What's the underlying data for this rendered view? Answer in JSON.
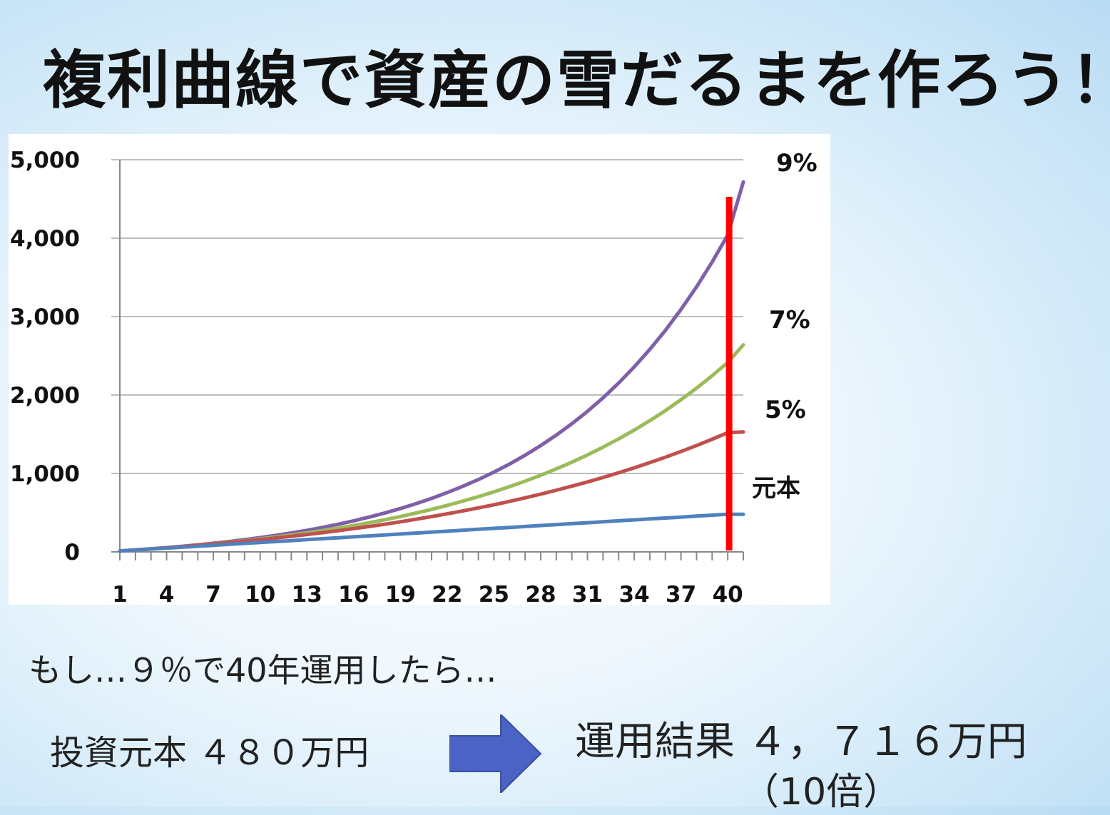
{
  "title": "複利曲線で資産の雪だるまを作ろう！",
  "chart_data": {
    "type": "line",
    "title": "",
    "xlabel": "",
    "ylabel": "",
    "ylim": [
      0,
      5000
    ],
    "y_ticks": [
      "0",
      "1,000",
      "2,000",
      "3,000",
      "4,000",
      "5,000"
    ],
    "y_tick_values": [
      0,
      1000,
      2000,
      3000,
      4000,
      5000
    ],
    "x_ticks": [
      "1",
      "4",
      "7",
      "10",
      "13",
      "16",
      "19",
      "22",
      "25",
      "28",
      "31",
      "34",
      "37",
      "40"
    ],
    "x_tick_values": [
      1,
      4,
      7,
      10,
      13,
      16,
      19,
      22,
      25,
      28,
      31,
      34,
      37,
      40
    ],
    "xlim": [
      1,
      41
    ],
    "grid": true,
    "series": [
      {
        "name": "9%",
        "color": "#7f5fa8",
        "rate": 0.09,
        "x": [
          1,
          2,
          3,
          4,
          5,
          6,
          7,
          8,
          9,
          10,
          11,
          12,
          13,
          14,
          15,
          16,
          17,
          18,
          19,
          20,
          21,
          22,
          23,
          24,
          25,
          26,
          27,
          28,
          29,
          30,
          31,
          32,
          33,
          34,
          35,
          36,
          37,
          38,
          39,
          40,
          41
        ],
        "y": [
          12,
          25,
          39,
          55,
          72,
          90,
          110,
          132,
          156,
          182,
          210,
          241,
          275,
          312,
          352,
          396,
          444,
          496,
          553,
          615,
          682,
          756,
          835,
          922,
          1017,
          1120,
          1233,
          1355,
          1489,
          1634,
          1792,
          1965,
          2153,
          2358,
          2582,
          2825,
          3091,
          3380,
          3696,
          4040,
          4716
        ]
      },
      {
        "name": "7%",
        "color": "#9bbb59",
        "rate": 0.07,
        "x": [
          1,
          2,
          3,
          4,
          5,
          6,
          7,
          8,
          9,
          10,
          11,
          12,
          13,
          14,
          15,
          16,
          17,
          18,
          19,
          20,
          21,
          22,
          23,
          24,
          25,
          26,
          27,
          28,
          29,
          30,
          31,
          32,
          33,
          34,
          35,
          36,
          37,
          38,
          39,
          40,
          41
        ],
        "y": [
          12,
          25,
          38,
          53,
          69,
          86,
          104,
          123,
          143,
          166,
          190,
          215,
          242,
          272,
          303,
          336,
          372,
          410,
          451,
          495,
          542,
          593,
          647,
          704,
          766,
          832,
          902,
          977,
          1058,
          1144,
          1236,
          1335,
          1440,
          1553,
          1673,
          1802,
          1940,
          2088,
          2246,
          2415,
          2640
        ]
      },
      {
        "name": "5%",
        "color": "#c0504d",
        "rate": 0.05,
        "x": [
          1,
          2,
          3,
          4,
          5,
          6,
          7,
          8,
          9,
          10,
          11,
          12,
          13,
          14,
          15,
          16,
          17,
          18,
          19,
          20,
          21,
          22,
          23,
          24,
          25,
          26,
          27,
          28,
          29,
          30,
          31,
          32,
          33,
          34,
          35,
          36,
          37,
          38,
          39,
          40,
          41
        ],
        "y": [
          12,
          25,
          39,
          53,
          68,
          84,
          101,
          118,
          137,
          156,
          177,
          199,
          221,
          245,
          270,
          297,
          324,
          353,
          384,
          416,
          450,
          485,
          522,
          561,
          601,
          644,
          689,
          736,
          786,
          838,
          892,
          949,
          1009,
          1072,
          1138,
          1207,
          1280,
          1356,
          1436,
          1520,
          1530
        ]
      },
      {
        "name": "元本",
        "color": "#4f81bd",
        "rate": 0,
        "x": [
          1,
          2,
          3,
          4,
          5,
          6,
          7,
          8,
          9,
          10,
          11,
          12,
          13,
          14,
          15,
          16,
          17,
          18,
          19,
          20,
          21,
          22,
          23,
          24,
          25,
          26,
          27,
          28,
          29,
          30,
          31,
          32,
          33,
          34,
          35,
          36,
          37,
          38,
          39,
          40,
          41
        ],
        "y": [
          12,
          24,
          36,
          48,
          60,
          72,
          84,
          96,
          108,
          120,
          132,
          144,
          156,
          168,
          180,
          192,
          204,
          216,
          228,
          240,
          252,
          264,
          276,
          288,
          300,
          312,
          324,
          336,
          348,
          360,
          372,
          384,
          396,
          408,
          420,
          432,
          444,
          456,
          468,
          480,
          480
        ]
      }
    ],
    "marker_line": {
      "x": 40,
      "color": "#ff0000"
    }
  },
  "labels": {
    "condition": "もし…９％で40年運用したら…",
    "principal": "投資元本 ４８０万円",
    "result": "運用結果 ４，７１６万円",
    "multiple": "（10倍）"
  },
  "colors": {
    "arrow": "#4a63c4"
  }
}
